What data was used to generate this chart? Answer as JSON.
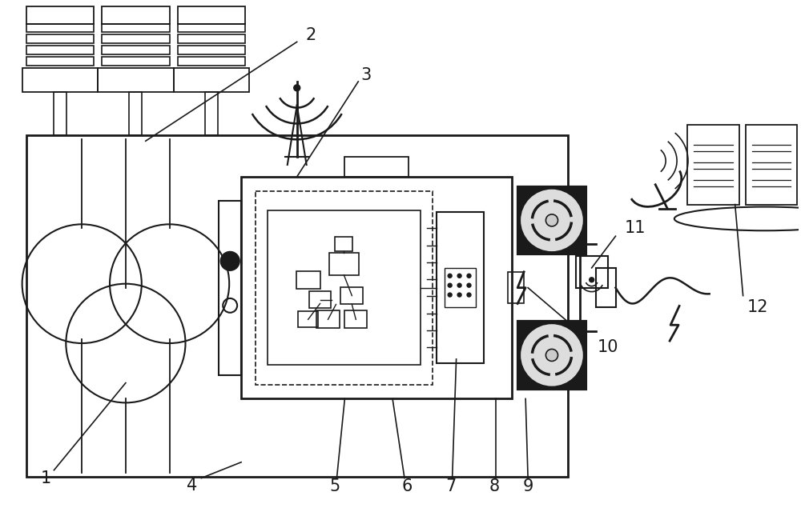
{
  "bg_color": "#ffffff",
  "lc": "#1a1a1a",
  "label_fontsize": 14,
  "figsize": [
    10.0,
    6.4
  ],
  "dpi": 100
}
